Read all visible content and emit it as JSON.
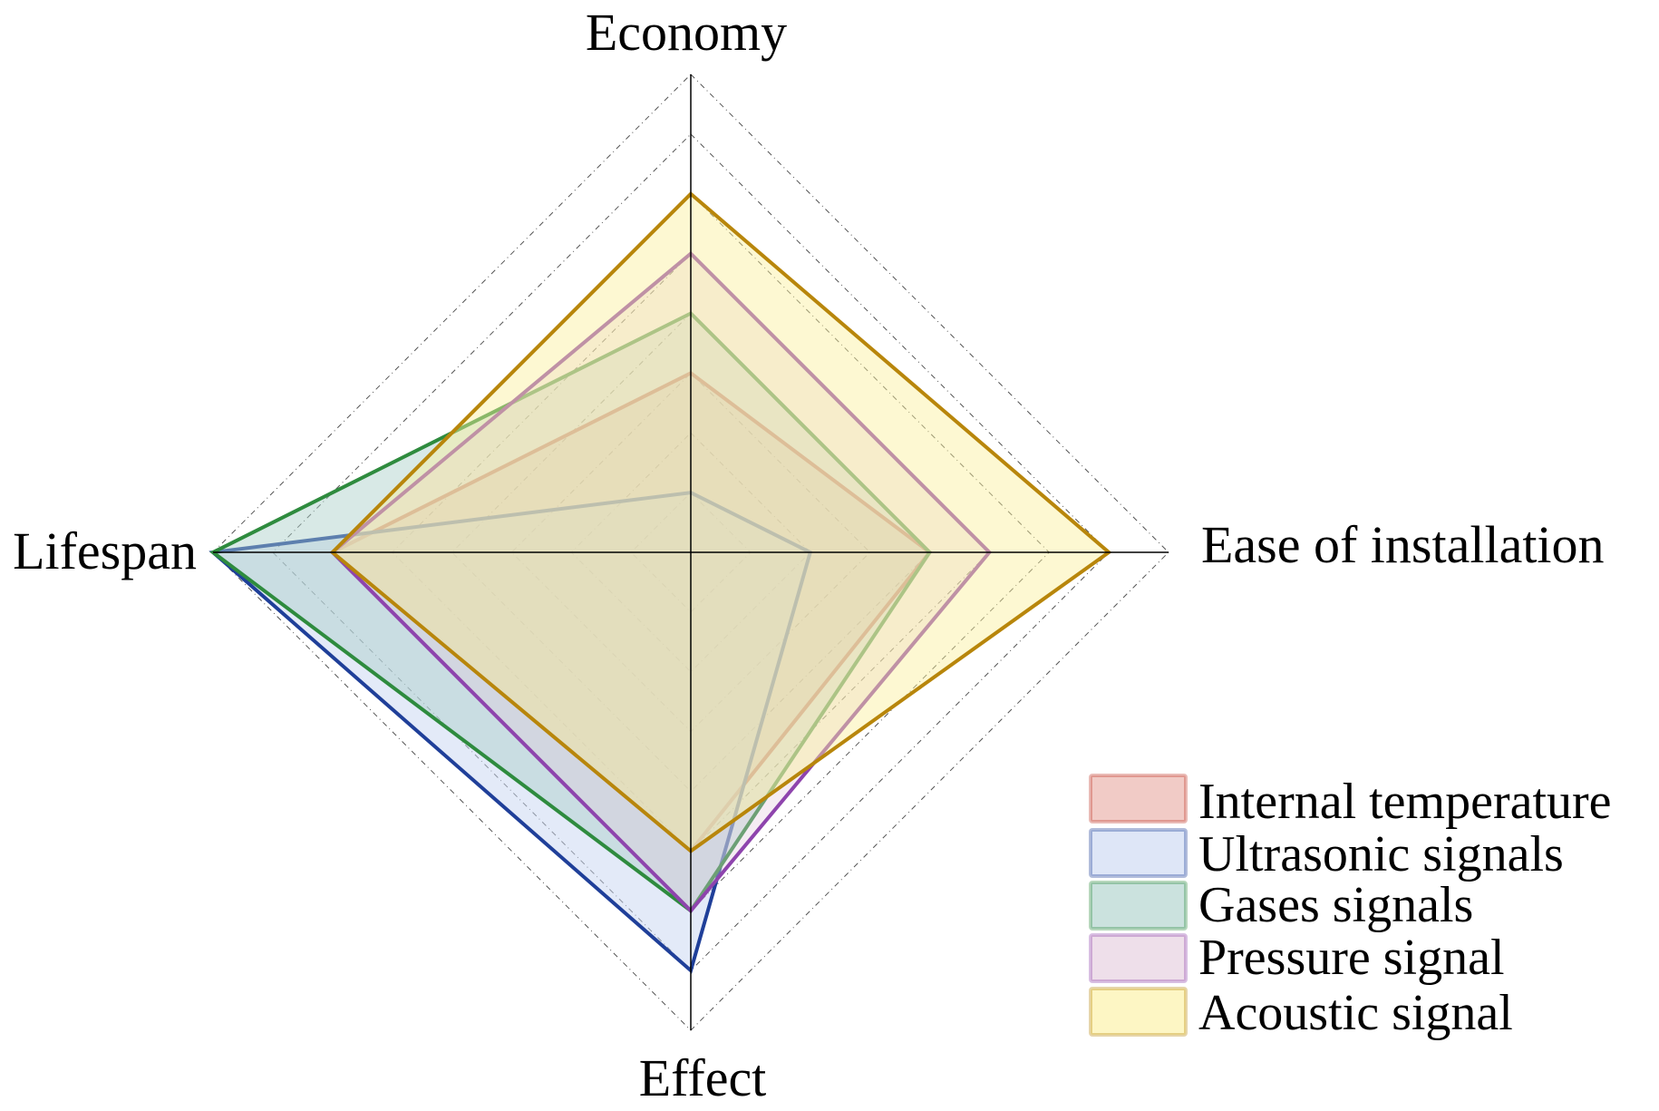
{
  "chart_data": {
    "type": "radar",
    "axes": [
      {
        "key": "economy",
        "label": "Economy"
      },
      {
        "key": "ease",
        "label": "Ease of installation"
      },
      {
        "key": "effect",
        "label": "Effect"
      },
      {
        "key": "lifespan",
        "label": "Lifespan"
      }
    ],
    "range": [
      0,
      8
    ],
    "rings": 8,
    "grid": true,
    "legend_position": "bottom-right",
    "series": [
      {
        "name": "Internal temperature",
        "values": {
          "economy": 3,
          "ease": 4,
          "effect": 5,
          "lifespan": 6
        },
        "line_color": "#c0392b",
        "fill_color": "#e8a8a0",
        "fill_opacity": 0.45
      },
      {
        "name": "Ultrasonic signals",
        "values": {
          "economy": 1,
          "ease": 2,
          "effect": 7,
          "lifespan": 8
        },
        "line_color": "#1f3f99",
        "fill_color": "#c8d6f2",
        "fill_opacity": 0.5
      },
      {
        "name": "Gases signals",
        "values": {
          "economy": 4,
          "ease": 4,
          "effect": 6,
          "lifespan": 8
        },
        "line_color": "#2e8b3e",
        "fill_color": "#a8cfc8",
        "fill_opacity": 0.45
      },
      {
        "name": "Pressure signal",
        "values": {
          "economy": 5,
          "ease": 5,
          "effect": 6,
          "lifespan": 6
        },
        "line_color": "#8e44ad",
        "fill_color": "#e3c9dc",
        "fill_opacity": 0.35
      },
      {
        "name": "Acoustic signal",
        "values": {
          "economy": 6,
          "ease": 7,
          "effect": 5,
          "lifespan": 6
        },
        "line_color": "#b8860b",
        "fill_color": "#fbf09c",
        "fill_opacity": 0.45
      }
    ]
  }
}
